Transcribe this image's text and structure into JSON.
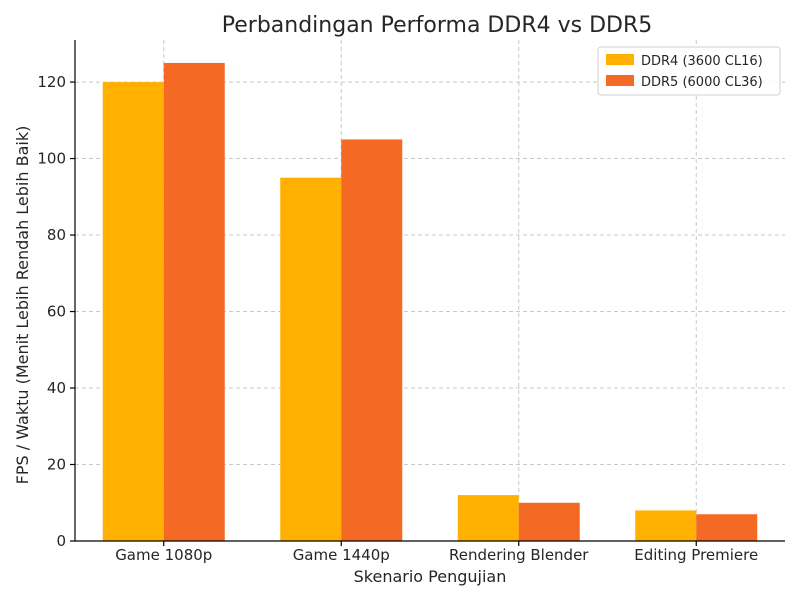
{
  "chart_data": {
    "type": "bar",
    "title": "Perbandingan Performa DDR4 vs DDR5",
    "xlabel": "Skenario Pengujian",
    "ylabel": "FPS / Waktu (Menit Lebih Rendah Lebih Baik)",
    "categories": [
      "Game 1080p",
      "Game 1440p",
      "Rendering Blender",
      "Editing Premiere"
    ],
    "series": [
      {
        "name": "DDR4 (3600 CL16)",
        "values": [
          120,
          95,
          12,
          8
        ],
        "color": "#FFB000"
      },
      {
        "name": "DDR5 (6000 CL36)",
        "values": [
          125,
          105,
          10,
          7
        ],
        "color": "#F46A24"
      }
    ],
    "ylim": [
      0,
      131
    ],
    "yticks": [
      0,
      20,
      40,
      60,
      80,
      100,
      120
    ],
    "grid": true,
    "legend_position": "top-right"
  }
}
